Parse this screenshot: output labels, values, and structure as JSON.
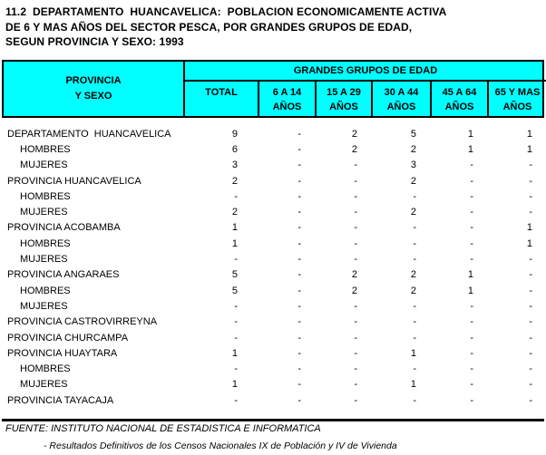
{
  "title": {
    "line1": "11.2  DEPARTAMENTO  HUANCAVELICA:  POBLACION ECONOMICAMENTE ACTIVA",
    "line2": "DE 6 Y MAS AÑOS DEL SECTOR PESCA, POR GRANDES GRUPOS DE EDAD,",
    "line3": "SEGUN PROVINCIA Y SEXO: 1993"
  },
  "colors": {
    "header_bg": "#00ffff",
    "border": "#000000",
    "text": "#000000",
    "page_bg": "#ffffff"
  },
  "table": {
    "header": {
      "left_line1": "PROVINCIA",
      "left_line2": "Y SEXO",
      "group": "GRANDES GRUPOS DE EDAD",
      "columns": [
        {
          "line1": "TOTAL",
          "line2": ""
        },
        {
          "line1": "6 A 14",
          "line2": "AÑOS"
        },
        {
          "line1": "15 A 29",
          "line2": "AÑOS"
        },
        {
          "line1": "30 A 44",
          "line2": "AÑOS"
        },
        {
          "line1": "45 A 64",
          "line2": "AÑOS"
        },
        {
          "line1": "65 Y MAS",
          "line2": "AÑOS"
        }
      ]
    },
    "rows": [
      {
        "label": "DEPARTAMENTO  HUANCAVELICA",
        "indent": false,
        "values": [
          "9",
          "-",
          "2",
          "5",
          "1",
          "1"
        ]
      },
      {
        "label": "HOMBRES",
        "indent": true,
        "values": [
          "6",
          "-",
          "2",
          "2",
          "1",
          "1"
        ]
      },
      {
        "label": "MUJERES",
        "indent": true,
        "values": [
          "3",
          "-",
          "-",
          "3",
          "-",
          "-"
        ]
      },
      {
        "label": "PROVINCIA HUANCAVELICA",
        "indent": false,
        "values": [
          "2",
          "-",
          "-",
          "2",
          "-",
          "-"
        ]
      },
      {
        "label": "HOMBRES",
        "indent": true,
        "values": [
          "-",
          "-",
          "-",
          "-",
          "-",
          "-"
        ]
      },
      {
        "label": "MUJERES",
        "indent": true,
        "values": [
          "2",
          "-",
          "-",
          "2",
          "-",
          "-"
        ]
      },
      {
        "label": "PROVINCIA ACOBAMBA",
        "indent": false,
        "values": [
          "1",
          "-",
          "-",
          "-",
          "-",
          "1"
        ]
      },
      {
        "label": "HOMBRES",
        "indent": true,
        "values": [
          "1",
          "-",
          "-",
          "-",
          "-",
          "1"
        ]
      },
      {
        "label": "MUJERES",
        "indent": true,
        "values": [
          "-",
          "-",
          "-",
          "-",
          "-",
          "-"
        ]
      },
      {
        "label": "PROVINCIA ANGARAES",
        "indent": false,
        "values": [
          "5",
          "-",
          "2",
          "2",
          "1",
          "-"
        ]
      },
      {
        "label": "HOMBRES",
        "indent": true,
        "values": [
          "5",
          "-",
          "2",
          "2",
          "1",
          "-"
        ]
      },
      {
        "label": "MUJERES",
        "indent": true,
        "values": [
          "-",
          "-",
          "-",
          "-",
          "-",
          "-"
        ]
      },
      {
        "label": "PROVINCIA CASTROVIRREYNA",
        "indent": false,
        "values": [
          "-",
          "-",
          "-",
          "-",
          "-",
          "-"
        ]
      },
      {
        "label": "PROVINCIA CHURCAMPA",
        "indent": false,
        "values": [
          "-",
          "-",
          "-",
          "-",
          "-",
          "-"
        ]
      },
      {
        "label": "PROVINCIA HUAYTARA",
        "indent": false,
        "values": [
          "1",
          "-",
          "-",
          "1",
          "-",
          "-"
        ]
      },
      {
        "label": "HOMBRES",
        "indent": true,
        "values": [
          "-",
          "-",
          "-",
          "-",
          "-",
          "-"
        ]
      },
      {
        "label": "MUJERES",
        "indent": true,
        "values": [
          "1",
          "-",
          "-",
          "1",
          "-",
          "-"
        ]
      },
      {
        "label": "PROVINCIA TAYACAJA",
        "indent": false,
        "values": [
          "-",
          "-",
          "-",
          "-",
          "-",
          "-"
        ]
      }
    ]
  },
  "footer": {
    "line1": "FUENTE: INSTITUTO NACIONAL DE ESTADISTICA E INFORMATICA",
    "line2": "- Resultados Definitivos de los Censos Nacionales IX de Población y IV de Vivienda"
  }
}
